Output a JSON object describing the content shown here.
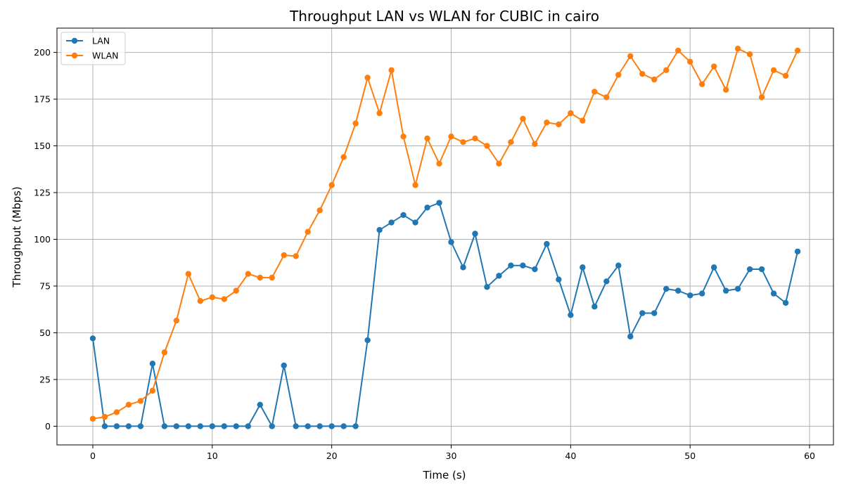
{
  "chart_data": {
    "type": "line",
    "title": "Throughput LAN vs WLAN for CUBIC in cairo",
    "xlabel": "Time (s)",
    "ylabel": "Throughput (Mbps)",
    "xlim": [
      -3,
      62
    ],
    "ylim": [
      -10,
      213
    ],
    "xticks": [
      0,
      10,
      20,
      30,
      40,
      50,
      60
    ],
    "yticks": [
      0,
      25,
      50,
      75,
      100,
      125,
      150,
      175,
      200
    ],
    "grid": true,
    "legend_position": "upper-left",
    "x": [
      0,
      1,
      2,
      3,
      4,
      5,
      6,
      7,
      8,
      9,
      10,
      11,
      12,
      13,
      14,
      15,
      16,
      17,
      18,
      19,
      20,
      21,
      22,
      23,
      24,
      25,
      26,
      27,
      28,
      29,
      30,
      31,
      32,
      33,
      34,
      35,
      36,
      37,
      38,
      39,
      40,
      41,
      42,
      43,
      44,
      45,
      46,
      47,
      48,
      49,
      50,
      51,
      52,
      53,
      54,
      55,
      56,
      57,
      58,
      59
    ],
    "series": [
      {
        "name": "LAN",
        "color": "#1f77b4",
        "values": [
          47,
          0,
          0,
          0,
          0,
          33.5,
          0,
          0,
          0,
          0,
          0,
          0,
          0,
          0,
          11.5,
          0,
          32.5,
          0,
          0,
          0,
          0,
          0,
          0,
          46,
          105,
          109,
          113,
          109,
          117,
          119.5,
          98.5,
          85,
          103,
          74.5,
          80.5,
          86,
          86,
          84,
          97.5,
          78.5,
          59.5,
          85,
          64,
          77.5,
          86,
          48,
          60.5,
          60.5,
          73.5,
          72.5,
          70,
          71,
          85,
          72.5,
          73.5,
          84,
          84,
          71,
          66,
          93.5
        ]
      },
      {
        "name": "WLAN",
        "color": "#ff7f0e",
        "values": [
          4,
          5,
          7.5,
          11.5,
          13.5,
          19,
          39.5,
          56.5,
          81.5,
          67,
          69,
          68,
          72.5,
          81.5,
          79.5,
          79.5,
          91.5,
          91,
          104,
          115.5,
          129,
          144,
          162,
          186.5,
          167.5,
          190.5,
          155,
          129,
          154,
          140.5,
          155,
          152,
          154,
          150,
          140.5,
          152,
          164.5,
          151,
          162.5,
          161.5,
          167.5,
          163.5,
          179,
          176,
          188,
          198,
          188.5,
          185.5,
          190.5,
          201,
          195,
          183,
          192.5,
          180,
          202,
          199,
          176,
          190.5,
          187.5,
          201
        ]
      }
    ]
  }
}
